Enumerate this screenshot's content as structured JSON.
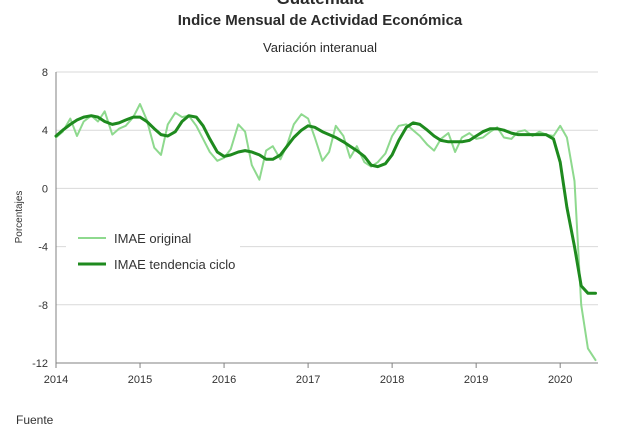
{
  "page": {
    "top_cut_title": "Guatemala",
    "source_cut": "Fuente"
  },
  "chart_data": {
    "type": "line",
    "title": "Indice Mensual de  Actividad Económica",
    "subtitle": "Variación interanual",
    "xlabel": "",
    "ylabel": "Porcentajes",
    "xlim": [
      2014,
      2020.45
    ],
    "ylim": [
      -12,
      8
    ],
    "x_ticks": [
      "2014",
      "2015",
      "2016",
      "2017",
      "2018",
      "2019",
      "2020"
    ],
    "y_ticks": [
      8,
      4,
      0,
      -4,
      -8,
      -12
    ],
    "y_tick_labels": [
      "8",
      "4",
      "0",
      "-4",
      "-8",
      "-12"
    ],
    "grid": {
      "horizontal": true,
      "vertical": false
    },
    "legend": {
      "position": "center-left",
      "entries": [
        "IMAE original",
        "IMAE tendencia ciclo"
      ]
    },
    "colors": {
      "original": "#8ed98e",
      "trend": "#1e8a1e",
      "grid": "#d9d9d9",
      "axis": "#808080"
    },
    "series": [
      {
        "name": "IMAE original",
        "x": [
          2014.0,
          2014.08,
          2014.17,
          2014.25,
          2014.33,
          2014.42,
          2014.5,
          2014.58,
          2014.67,
          2014.75,
          2014.83,
          2014.92,
          2015.0,
          2015.08,
          2015.17,
          2015.25,
          2015.33,
          2015.42,
          2015.5,
          2015.58,
          2015.67,
          2015.75,
          2015.83,
          2015.92,
          2016.0,
          2016.08,
          2016.17,
          2016.25,
          2016.33,
          2016.42,
          2016.5,
          2016.58,
          2016.67,
          2016.75,
          2016.83,
          2016.92,
          2017.0,
          2017.08,
          2017.17,
          2017.25,
          2017.33,
          2017.42,
          2017.5,
          2017.58,
          2017.67,
          2017.75,
          2017.83,
          2017.92,
          2018.0,
          2018.08,
          2018.17,
          2018.25,
          2018.33,
          2018.42,
          2018.5,
          2018.58,
          2018.67,
          2018.75,
          2018.83,
          2018.92,
          2019.0,
          2019.08,
          2019.17,
          2019.25,
          2019.33,
          2019.42,
          2019.5,
          2019.58,
          2019.67,
          2019.75,
          2019.83,
          2019.92,
          2020.0,
          2020.08,
          2020.17,
          2020.25,
          2020.33,
          2020.42
        ],
        "values": [
          3.5,
          3.9,
          4.8,
          3.6,
          4.6,
          5.0,
          4.6,
          5.3,
          3.7,
          4.1,
          4.3,
          4.9,
          5.8,
          4.7,
          2.8,
          2.3,
          4.4,
          5.2,
          4.9,
          5.0,
          4.3,
          3.4,
          2.5,
          1.9,
          2.1,
          2.7,
          4.4,
          3.9,
          1.6,
          0.6,
          2.6,
          2.9,
          2.0,
          3.0,
          4.4,
          5.1,
          4.8,
          3.5,
          1.9,
          2.5,
          4.3,
          3.6,
          2.1,
          2.9,
          1.8,
          1.5,
          1.8,
          2.4,
          3.6,
          4.3,
          4.4,
          4.0,
          3.6,
          3.0,
          2.6,
          3.4,
          3.8,
          2.5,
          3.5,
          3.8,
          3.4,
          3.5,
          3.9,
          4.2,
          3.5,
          3.4,
          3.9,
          4.0,
          3.6,
          3.9,
          3.7,
          3.6,
          4.3,
          3.5,
          0.5,
          -8.0,
          -11.0,
          -11.8
        ]
      },
      {
        "name": "IMAE tendencia ciclo",
        "x": [
          2014.0,
          2014.08,
          2014.17,
          2014.25,
          2014.33,
          2014.42,
          2014.5,
          2014.58,
          2014.67,
          2014.75,
          2014.83,
          2014.92,
          2015.0,
          2015.08,
          2015.17,
          2015.25,
          2015.33,
          2015.42,
          2015.5,
          2015.58,
          2015.67,
          2015.75,
          2015.83,
          2015.92,
          2016.0,
          2016.08,
          2016.17,
          2016.25,
          2016.33,
          2016.42,
          2016.5,
          2016.58,
          2016.67,
          2016.75,
          2016.83,
          2016.92,
          2017.0,
          2017.08,
          2017.17,
          2017.25,
          2017.33,
          2017.42,
          2017.5,
          2017.58,
          2017.67,
          2017.75,
          2017.83,
          2017.92,
          2018.0,
          2018.08,
          2018.17,
          2018.25,
          2018.33,
          2018.42,
          2018.5,
          2018.58,
          2018.67,
          2018.75,
          2018.83,
          2018.92,
          2019.0,
          2019.08,
          2019.17,
          2019.25,
          2019.33,
          2019.42,
          2019.5,
          2019.58,
          2019.67,
          2019.75,
          2019.83,
          2019.92,
          2020.0,
          2020.08,
          2020.17,
          2020.25,
          2020.33,
          2020.42
        ],
        "values": [
          3.6,
          4.0,
          4.4,
          4.7,
          4.9,
          5.0,
          4.9,
          4.6,
          4.4,
          4.5,
          4.7,
          4.9,
          4.9,
          4.6,
          4.1,
          3.7,
          3.6,
          3.9,
          4.6,
          5.0,
          4.9,
          4.3,
          3.4,
          2.5,
          2.2,
          2.3,
          2.5,
          2.6,
          2.5,
          2.3,
          2.0,
          2.0,
          2.3,
          2.9,
          3.5,
          4.0,
          4.3,
          4.2,
          3.9,
          3.7,
          3.5,
          3.2,
          2.9,
          2.6,
          2.2,
          1.6,
          1.5,
          1.7,
          2.3,
          3.3,
          4.2,
          4.5,
          4.4,
          4.0,
          3.6,
          3.3,
          3.2,
          3.2,
          3.2,
          3.3,
          3.6,
          3.9,
          4.1,
          4.1,
          4.0,
          3.8,
          3.7,
          3.7,
          3.7,
          3.7,
          3.7,
          3.4,
          1.8,
          -1.3,
          -4.0,
          -6.7,
          -7.2,
          -7.2
        ]
      }
    ]
  }
}
